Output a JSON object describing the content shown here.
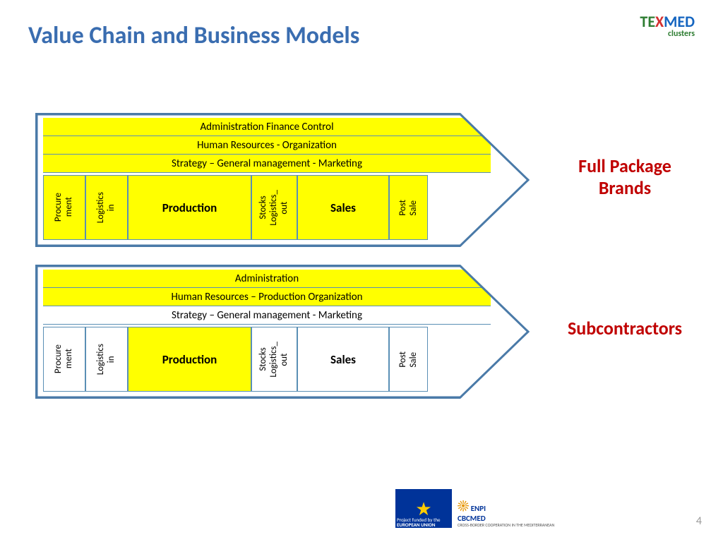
{
  "title": "Value Chain and Business Models",
  "pageNumber": "4",
  "logo": {
    "t1": "TE",
    "t2": "X",
    "t3": "MED",
    "sub": "clusters"
  },
  "labels": {
    "fullPackage": "Full Package Brands",
    "subcontractors": "Subcontractors"
  },
  "d1": {
    "support": [
      {
        "text": "Administration Finance Control",
        "bg": "yellow"
      },
      {
        "text": "Human Resources - Organization",
        "bg": "yellow"
      },
      {
        "text": "Strategy – General management - Marketing",
        "bg": "yellow"
      }
    ],
    "primary": [
      {
        "text": "Procure\nment",
        "w": 60,
        "bg": "yellow",
        "orient": "v"
      },
      {
        "text": "Logistics\nin",
        "w": 60,
        "bg": "yellow",
        "orient": "v"
      },
      {
        "text": "Production",
        "w": 175,
        "bg": "yellow",
        "orient": "h"
      },
      {
        "text": "Stocks\nLogistics_\nout",
        "w": 65,
        "bg": "yellow",
        "orient": "v"
      },
      {
        "text": "Sales",
        "w": 130,
        "bg": "yellow",
        "orient": "h"
      },
      {
        "text": "Post\nSale",
        "w": 55,
        "bg": "yellow",
        "orient": "v"
      }
    ]
  },
  "d2": {
    "support": [
      {
        "text": "Administration",
        "bg": "yellow"
      },
      {
        "text": "Human Resources – Production Organization",
        "bg": "yellow"
      },
      {
        "text": "Strategy – General management - Marketing",
        "bg": "white"
      }
    ],
    "primary": [
      {
        "text": "Procure\nment",
        "w": 60,
        "bg": "white",
        "orient": "v"
      },
      {
        "text": "Logistics\nin",
        "w": 60,
        "bg": "white",
        "orient": "v"
      },
      {
        "text": "Production",
        "w": 175,
        "bg": "yellow",
        "orient": "h"
      },
      {
        "text": "Stocks\nLogistics_\nout",
        "w": 65,
        "bg": "white",
        "orient": "v"
      },
      {
        "text": "Sales",
        "w": 130,
        "bg": "white",
        "orient": "h"
      },
      {
        "text": "Post\nSale",
        "w": 55,
        "bg": "white",
        "orient": "v"
      }
    ]
  },
  "colors": {
    "yellow": "#ffff00",
    "white": "#ffffff",
    "border": "#4a7aa8",
    "title": "#3a6db0",
    "rightLabel": "#c00000"
  },
  "footer": {
    "eu1": "Project funded by the",
    "eu2": "EUROPEAN UNION",
    "enpi1": "ENPI",
    "enpi2": "CBCMED",
    "enpi3": "CROSS-BORDER COOPERATION IN THE MEDITERRANEAN"
  }
}
